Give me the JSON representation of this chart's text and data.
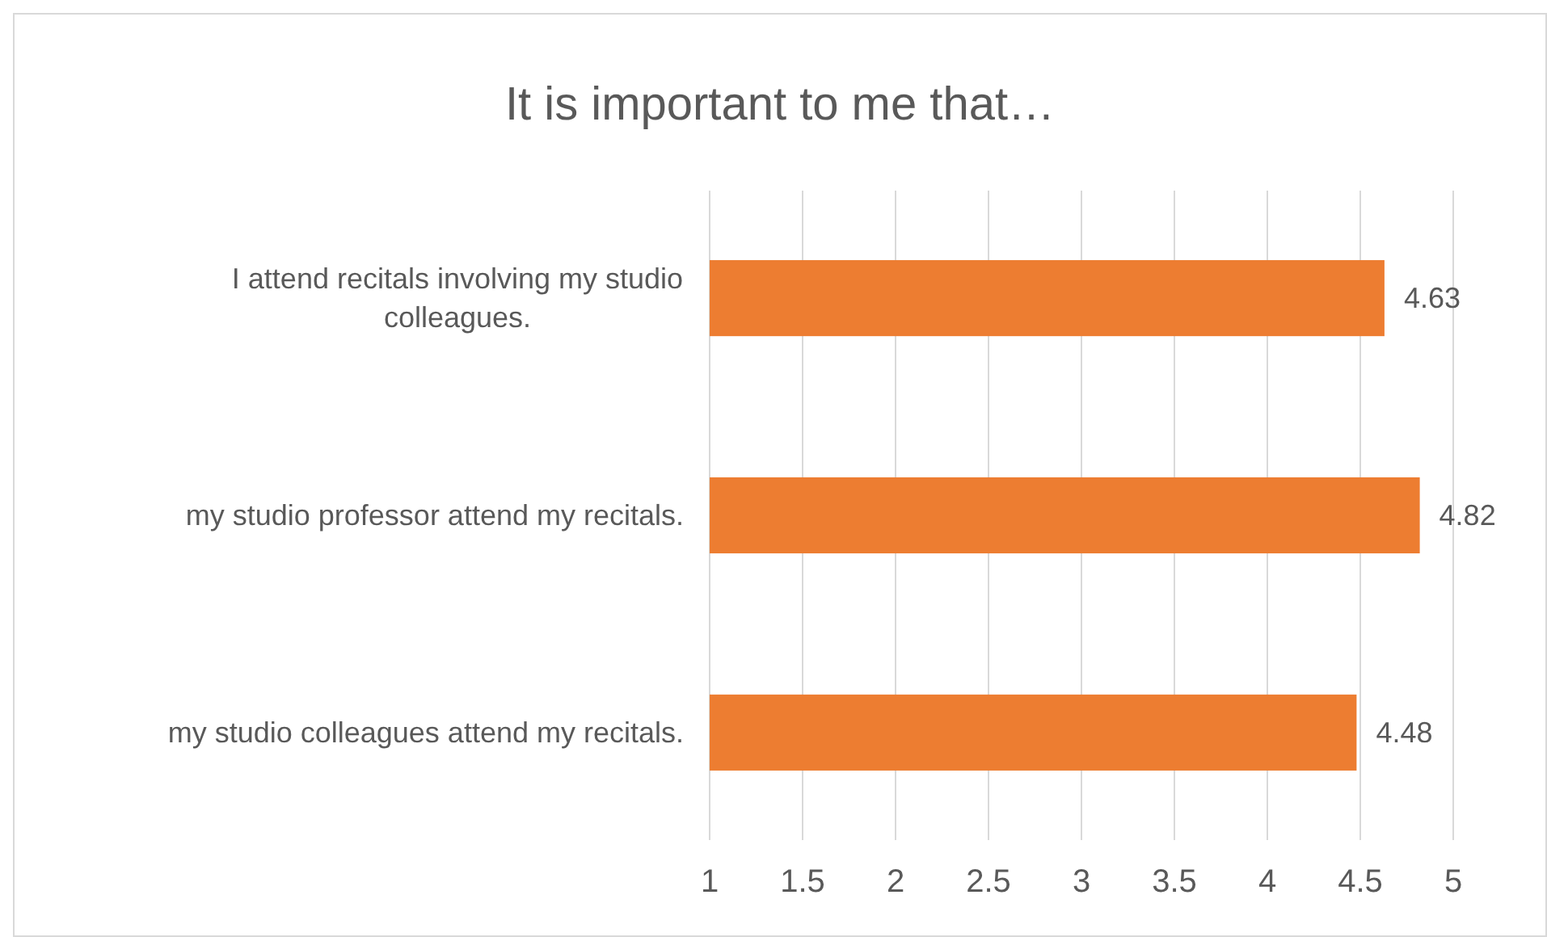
{
  "chart_data": {
    "type": "bar",
    "orientation": "horizontal",
    "title": "It is important to me that…",
    "categories": [
      "I attend recitals involving my studio colleagues.",
      "my studio professor attend my recitals.",
      "my studio colleagues attend my recitals."
    ],
    "values": [
      4.63,
      4.82,
      4.48
    ],
    "color": "#ed7d31",
    "xlim": [
      1,
      5
    ],
    "xticks": [
      1,
      1.5,
      2,
      2.5,
      3,
      3.5,
      4,
      4.5,
      5
    ],
    "grid": "x",
    "data_labels": true
  }
}
